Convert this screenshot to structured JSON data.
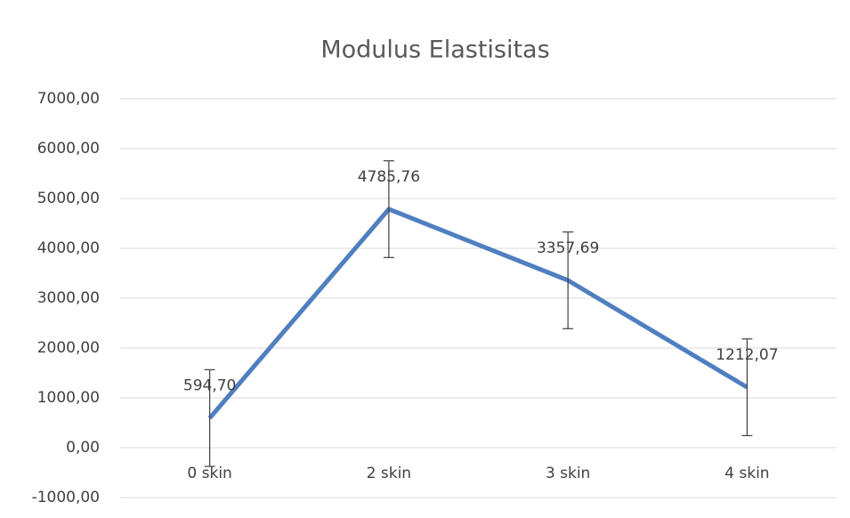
{
  "chart_data": {
    "type": "line",
    "title": "Modulus Elastisitas",
    "categories": [
      "0 skin",
      "2 skin",
      "3 skin",
      "4 skin"
    ],
    "values": [
      594.7,
      4785.76,
      3357.69,
      1212.07
    ],
    "value_labels": [
      "594,70",
      "4785,76",
      "3357,69",
      "1212,07"
    ],
    "errors": [
      970,
      970,
      970,
      970
    ],
    "color": "#4f7fc0",
    "ylim": [
      -1000,
      7000
    ],
    "yticks": [
      {
        "value": -1000,
        "label": "-1000,00"
      },
      {
        "value": 0,
        "label": "0,00"
      },
      {
        "value": 1000,
        "label": "1000,00"
      },
      {
        "value": 2000,
        "label": "2000,00"
      },
      {
        "value": 3000,
        "label": "3000,00"
      },
      {
        "value": 4000,
        "label": "4000,00"
      },
      {
        "value": 5000,
        "label": "5000,00"
      },
      {
        "value": 6000,
        "label": "6000,00"
      },
      {
        "value": 7000,
        "label": "7000,00"
      }
    ],
    "grid": true
  }
}
